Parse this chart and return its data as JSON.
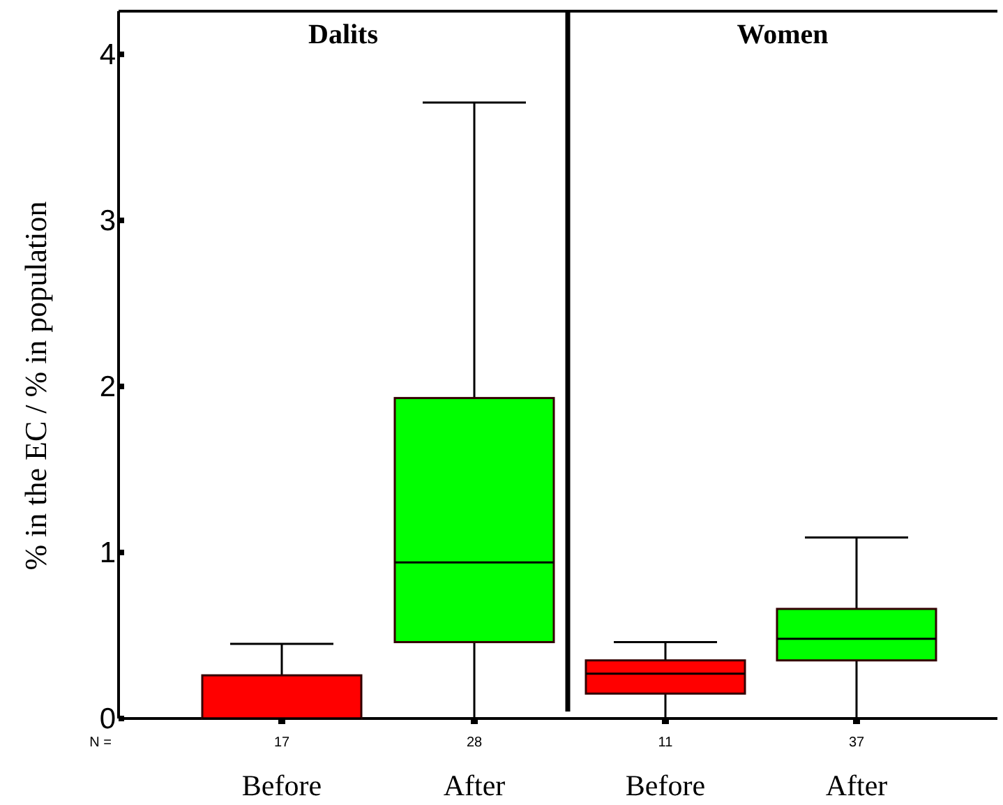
{
  "chart_data": [
    {
      "type": "box",
      "title": "Dalits",
      "ylabel": "% in the EC / % in population",
      "categories": [
        "Before",
        "After"
      ],
      "colors": [
        "#ff0000",
        "#00ff00"
      ],
      "ylim": [
        0,
        4.26
      ],
      "yticks": [
        0,
        1,
        2,
        3,
        4
      ],
      "grid": false,
      "boxes": [
        {
          "low": 0,
          "q1": 0,
          "median": 0,
          "q3": 0.26,
          "high": 0.45
        },
        {
          "low": 0,
          "q1": 0.46,
          "median": 0.94,
          "q3": 1.93,
          "high": 3.71
        }
      ],
      "annotations": [
        "N =",
        "17",
        "28"
      ]
    },
    {
      "type": "box",
      "title": "Women",
      "categories": [
        "Before",
        "After"
      ],
      "colors": [
        "#ff0000",
        "#00ff00"
      ],
      "ylim": [
        0,
        4.26
      ],
      "grid": false,
      "tick_labels": "x",
      "boxes": [
        {
          "low": 0,
          "q1": 0.15,
          "median": 0.27,
          "q3": 0.35,
          "high": 0.46
        },
        {
          "low": 0,
          "q1": 0.35,
          "median": 0.48,
          "q3": 0.66,
          "high": 1.09
        }
      ],
      "annotations": [
        "11",
        "37"
      ]
    }
  ]
}
